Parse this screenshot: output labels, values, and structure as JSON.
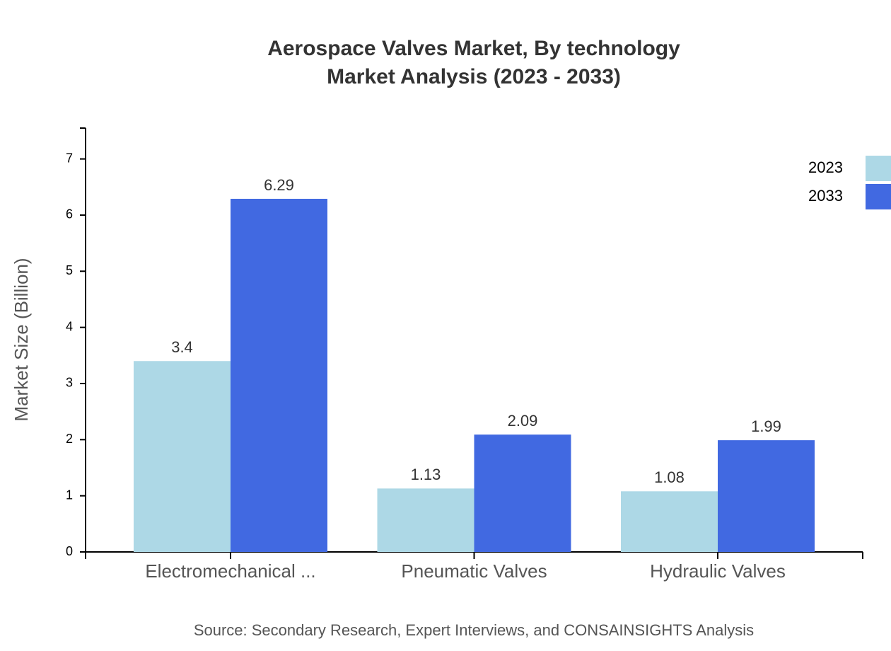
{
  "chart_data": {
    "type": "bar",
    "title": "Aerospace Valves Market, By technology",
    "subtitle": "Market Analysis (2023 - 2033)",
    "y_label": "Market Size (Billion)",
    "source": "Source: Secondary Research, Expert Interviews, and CONSAINSIGHTS Analysis",
    "categories": [
      "Electromechanical ...",
      "Pneumatic Valves",
      "Hydraulic Valves"
    ],
    "series": [
      {
        "name": "2023",
        "color": "#add8e6",
        "values": [
          3.4,
          1.13,
          1.08
        ]
      },
      {
        "name": "2033",
        "color": "#4169e1",
        "values": [
          6.29,
          2.09,
          1.99
        ]
      }
    ],
    "ylim": [
      0,
      7.55
    ],
    "yticks": [
      0,
      1,
      2,
      3,
      4,
      5,
      6,
      7
    ],
    "legend": "top-right"
  }
}
